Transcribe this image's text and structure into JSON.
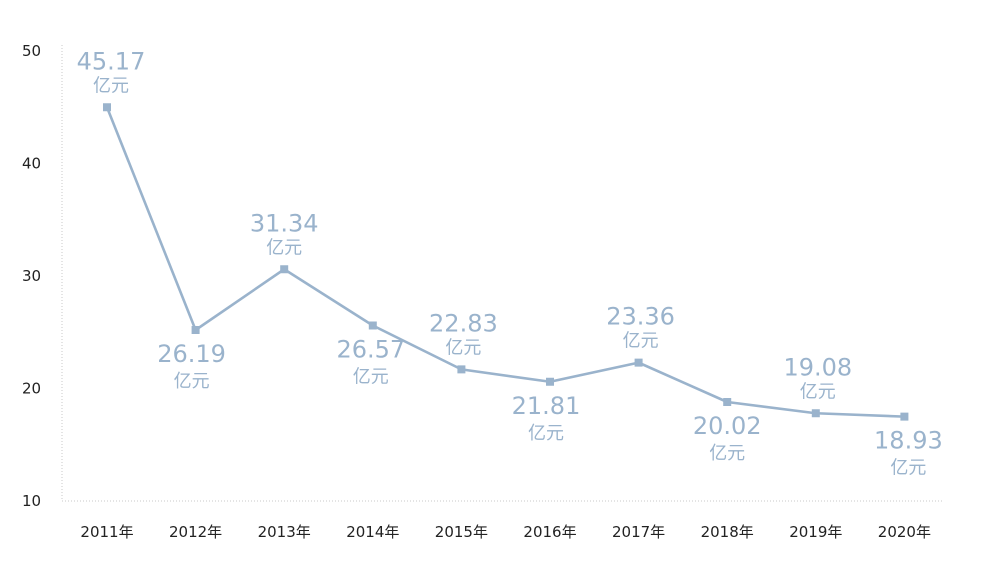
{
  "chart_data": {
    "type": "line",
    "categories": [
      "2011年",
      "2012年",
      "2013年",
      "2014年",
      "2015年",
      "2016年",
      "2017年",
      "2018年",
      "2019年",
      "2020年"
    ],
    "series": [
      {
        "values": [
          45.17,
          26.19,
          31.34,
          26.57,
          22.83,
          21.81,
          23.36,
          20.02,
          19.08,
          18.93
        ]
      }
    ],
    "plotted_y": [
      45.0,
      25.2,
      30.6,
      25.6,
      21.7,
      20.6,
      22.3,
      18.8,
      17.8,
      17.5
    ],
    "data_labels": [
      "45.17",
      "26.19",
      "31.34",
      "26.57",
      "22.83",
      "21.81",
      "23.36",
      "20.02",
      "19.08",
      "18.93"
    ],
    "unit": "亿元",
    "ylim": [
      10,
      50
    ],
    "yticks": [
      "10",
      "20",
      "30",
      "40",
      "50"
    ],
    "grid": false,
    "color": "#9ab3cc",
    "axis_color": "#c8c8c8",
    "text_color": "#222222"
  }
}
